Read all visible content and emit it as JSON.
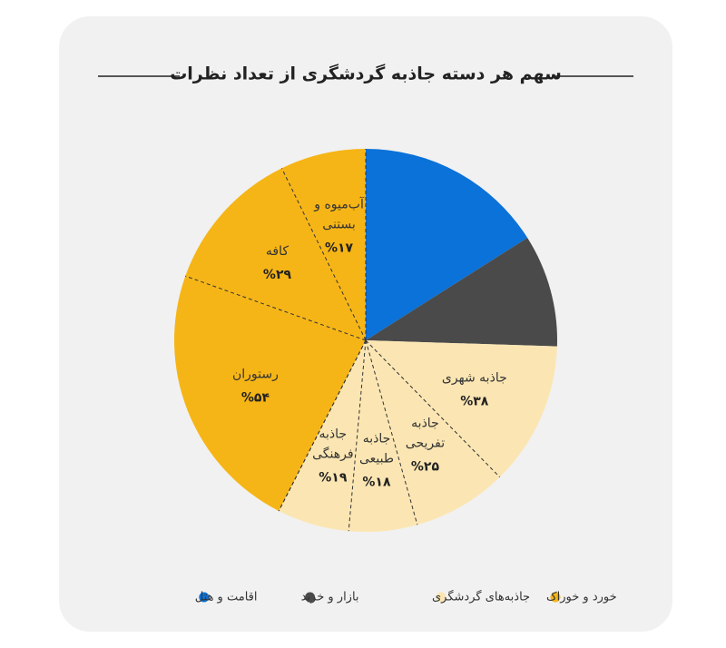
{
  "chart_data": {
    "type": "pie",
    "title": "سهم هر دسته جاذبه گردشگری از تعداد نظرات",
    "series": [
      {
        "name": "اقامت و هتل",
        "color": "#0a72d8",
        "value": 16
      },
      {
        "name": "بازار و خرید",
        "color": "#4a4a4a",
        "value": 9.5
      },
      {
        "name": "جاذبه‌های گردشگری",
        "color": "#fbe6b3",
        "value": 32,
        "slices": {
          "labels": [
            [
              "جاذبه شهری"
            ],
            [
              "جاذبه",
              "تفریحی"
            ],
            [
              "جاذبه",
              "طبیعی"
            ],
            [
              "جاذبه",
              "فرهنگی"
            ]
          ],
          "values": [
            38,
            25,
            18,
            19
          ],
          "value_labels": [
            "%۳۸",
            "%۲۵",
            "%۱۸",
            "%۱۹"
          ]
        }
      },
      {
        "name": "خورد و خوراک",
        "color": "#f6b516",
        "value": 42.5,
        "slices": {
          "labels": [
            [
              "رستوران"
            ],
            [
              "کافه"
            ],
            [
              "آب‌میوه و",
              "بستنی"
            ]
          ],
          "values": [
            54,
            29,
            17
          ],
          "value_labels": [
            "%۵۴",
            "%۲۹",
            "%۱۷"
          ]
        }
      }
    ]
  }
}
